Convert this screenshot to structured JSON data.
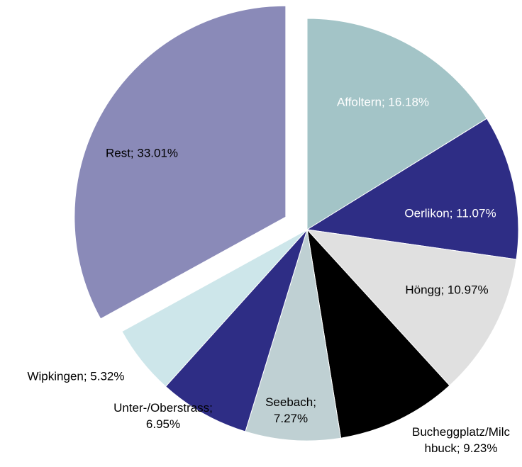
{
  "chart_data": {
    "type": "pie",
    "values": [
      16.18,
      11.07,
      10.97,
      9.23,
      7.27,
      6.95,
      5.32,
      33.01
    ],
    "value_labels": [
      [
        "Affoltern; 16.18%"
      ],
      [
        "Oerlikon; 11.07%"
      ],
      [
        "Höngg; 10.97%"
      ],
      [
        "Bucheggplatz/Milc",
        "hbuck; 9.23%"
      ],
      [
        "Seebach;",
        "7.27%"
      ],
      [
        "Unter-/Oberstrass;",
        "6.95%"
      ],
      [
        "Wipkingen; 5.32%"
      ],
      [
        "Rest; 33.01%"
      ]
    ],
    "colors": [
      "#a3c4c7",
      "#2e2d85",
      "#e0e0e0",
      "#000000",
      "#bfd0d3",
      "#2e2d85",
      "#cde6ea",
      "#8a8ab8"
    ],
    "label_colors": [
      "#ffffff",
      "#ffffff",
      "#000000",
      "#000000",
      "#000000",
      "#000000",
      "#000000",
      "#000000"
    ],
    "exploded": [
      false,
      false,
      false,
      false,
      false,
      false,
      false,
      true
    ]
  }
}
